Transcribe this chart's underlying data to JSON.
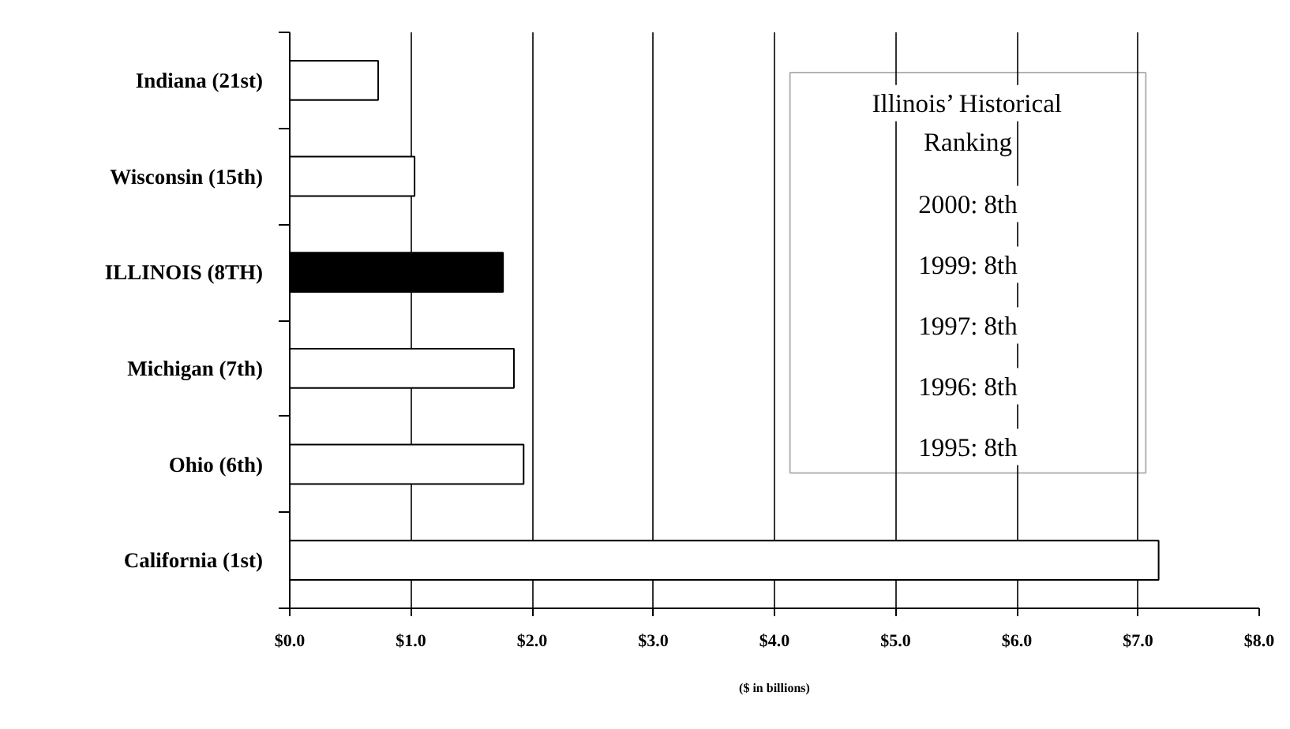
{
  "chart_data": {
    "type": "bar",
    "orientation": "horizontal",
    "categories": [
      "Indiana (21st)",
      "Wisconsin (15th)",
      "ILLINOIS (8TH)",
      "Michigan (7th)",
      "Ohio (6th)",
      "California (1st)"
    ],
    "values": [
      0.73,
      1.03,
      1.76,
      1.85,
      1.93,
      7.17
    ],
    "colors": [
      "#ffffff",
      "#ffffff",
      "#000000",
      "#ffffff",
      "#ffffff",
      "#ffffff"
    ],
    "xlabel": "($ in billions)",
    "xlim": [
      0,
      8
    ],
    "xticks": [
      {
        "value": 0,
        "label": "$0.0"
      },
      {
        "value": 1,
        "label": "$1.0"
      },
      {
        "value": 2,
        "label": "$2.0"
      },
      {
        "value": 3,
        "label": "$3.0"
      },
      {
        "value": 4,
        "label": "$4.0"
      },
      {
        "value": 5,
        "label": "$5.0"
      },
      {
        "value": 6,
        "label": "$6.0"
      },
      {
        "value": 7,
        "label": "$7.0"
      },
      {
        "value": 8,
        "label": "$8.0"
      }
    ],
    "grid": "x",
    "annotations": [
      "Illinois’ Historical Ranking",
      "2000: 8th",
      "1999: 8th",
      "1997: 8th",
      "1996: 8th",
      "1995: 8th"
    ]
  }
}
